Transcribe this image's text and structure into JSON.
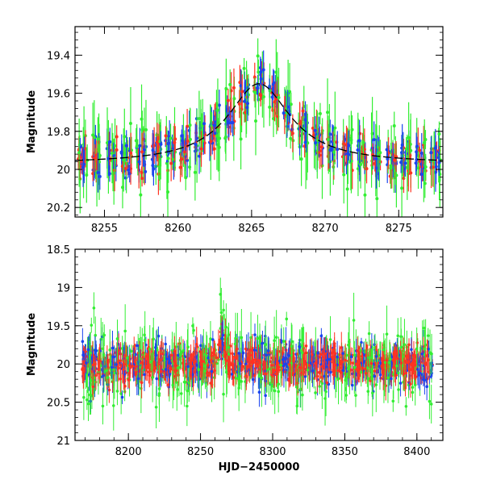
{
  "chart_data": [
    {
      "type": "scatter",
      "panel": "top",
      "xlabel": "",
      "ylabel": "Magnitude",
      "xlim": [
        8253,
        8278
      ],
      "ylim": [
        20.25,
        19.25
      ],
      "y_inverted": true,
      "x_ticks": [
        8255,
        8260,
        8265,
        8270,
        8275
      ],
      "x_tick_labels": [
        "8255",
        "8260",
        "8265",
        "8270",
        "8275"
      ],
      "y_ticks": [
        19.4,
        19.6,
        19.8,
        20,
        20.2
      ],
      "y_tick_labels": [
        "19.4",
        "19.6",
        "19.8",
        "20",
        "20.2"
      ],
      "series_colors": [
        "#33ee33",
        "#1a44ee",
        "#ff3322"
      ],
      "model_curve": {
        "color": "#000000",
        "style": "dashed",
        "peak_x": 8265.5,
        "peak_y": 19.55,
        "baseline_y": 19.97,
        "width_days": 2.6
      },
      "grid": false
    },
    {
      "type": "scatter",
      "panel": "bottom",
      "xlabel": "HJD−2450000",
      "ylabel": "Magnitude",
      "xlim": [
        8163,
        8418
      ],
      "ylim": [
        21,
        18.5
      ],
      "y_inverted": true,
      "x_ticks": [
        8200,
        8250,
        8300,
        8350,
        8400
      ],
      "x_tick_labels": [
        "8200",
        "8250",
        "8300",
        "8350",
        "8400"
      ],
      "y_ticks": [
        18.5,
        19,
        19.5,
        20,
        20.5,
        21
      ],
      "y_tick_labels": [
        "18.5",
        "19",
        "19.5",
        "20",
        "20.5",
        "21"
      ],
      "series_colors": [
        "#33ee33",
        "#1a44ee",
        "#ff3322"
      ],
      "baseline_y": 20.0,
      "grid": false
    }
  ]
}
